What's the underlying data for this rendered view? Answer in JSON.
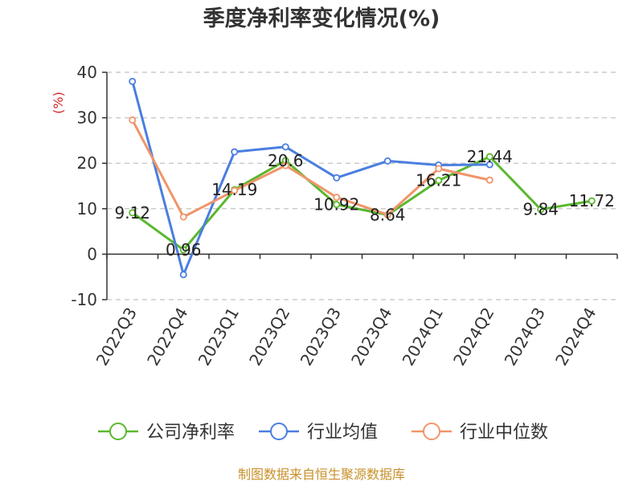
{
  "chart_data": {
    "type": "line",
    "title": "季度净利率变化情况(%)",
    "ylabel": "(%)",
    "ylim": [
      -10,
      40
    ],
    "yticks": [
      40,
      30,
      20,
      10,
      0,
      -10
    ],
    "grid": true,
    "legend_position": "bottom",
    "categories": [
      "2022Q3",
      "2022Q4",
      "2023Q1",
      "2023Q2",
      "2023Q3",
      "2023Q4",
      "2024Q1",
      "2024Q2",
      "2024Q3",
      "2024Q4"
    ],
    "series": [
      {
        "name": "公司净利率",
        "color": "#5ab82e",
        "values": [
          9.12,
          0.96,
          14.19,
          20.6,
          10.92,
          8.64,
          16.21,
          21.44,
          9.84,
          11.72
        ],
        "labels": [
          "9.12",
          "0.96",
          "14.19",
          "20.6",
          "10.92",
          "8.64",
          "16.21",
          "21.44",
          "9.84",
          "11.72"
        ]
      },
      {
        "name": "行业均值",
        "color": "#4a7ee0",
        "values": [
          38.0,
          -4.5,
          22.5,
          23.6,
          16.8,
          20.5,
          19.6,
          19.7,
          null,
          null
        ]
      },
      {
        "name": "行业中位数",
        "color": "#f0956a",
        "values": [
          29.5,
          8.2,
          14.0,
          19.5,
          12.5,
          8.7,
          18.8,
          16.3,
          null,
          null
        ]
      }
    ]
  },
  "source_text": "制图数据来自恒生聚源数据库"
}
